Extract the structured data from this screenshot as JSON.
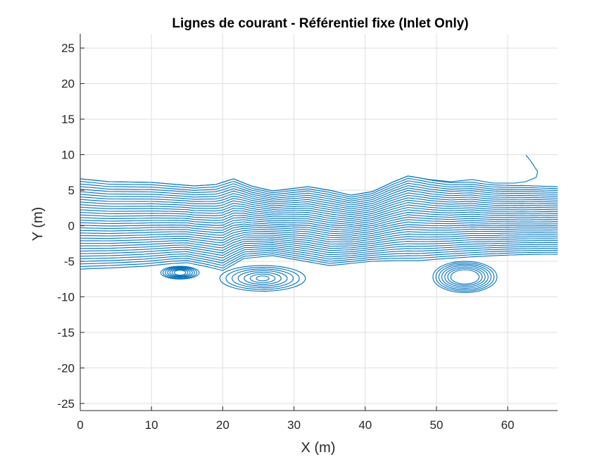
{
  "chart_data": {
    "type": "line",
    "title": "Lignes de courant - Référentiel fixe (Inlet Only)",
    "xlabel": "X (m)",
    "ylabel": "Y (m)",
    "xlim": [
      0,
      67
    ],
    "ylim": [
      -26,
      27
    ],
    "xticks": [
      0,
      10,
      20,
      30,
      40,
      50,
      60
    ],
    "yticks": [
      -25,
      -20,
      -15,
      -10,
      -5,
      0,
      5,
      10,
      15,
      20,
      25
    ],
    "grid": true,
    "line_color": "#0072BD",
    "streamlines": {
      "count": 36,
      "inlet_y_range": [
        -6.1,
        6.6
      ],
      "upper_envelope": [
        [
          0,
          6.6
        ],
        [
          4,
          6.2
        ],
        [
          10,
          6.1
        ],
        [
          16,
          5.6
        ],
        [
          19,
          5.8
        ],
        [
          21.5,
          6.6
        ],
        [
          24,
          5.6
        ],
        [
          27,
          4.9
        ],
        [
          32,
          5.5
        ],
        [
          35,
          5.0
        ],
        [
          38,
          4.3
        ],
        [
          41,
          4.8
        ],
        [
          44,
          6.2
        ],
        [
          46,
          7.0
        ],
        [
          49,
          6.5
        ],
        [
          52,
          6.2
        ],
        [
          55,
          6.5
        ],
        [
          58,
          6.0
        ],
        [
          61,
          6.0
        ],
        [
          62.5,
          6.2
        ],
        [
          64,
          6.8
        ],
        [
          64.2,
          7.6
        ],
        [
          63.3,
          9.0
        ],
        [
          62.6,
          9.9
        ]
      ],
      "lower_envelope": [
        [
          0,
          -6.1
        ],
        [
          5,
          -5.9
        ],
        [
          9,
          -5.7
        ],
        [
          13,
          -5.3
        ],
        [
          15,
          -5.2
        ],
        [
          18,
          -5.8
        ],
        [
          20,
          -6.3
        ],
        [
          23,
          -4.6
        ],
        [
          27,
          -4.2
        ],
        [
          31,
          -4.9
        ],
        [
          35,
          -5.6
        ],
        [
          38,
          -5.3
        ],
        [
          41,
          -5.0
        ],
        [
          44,
          -4.9
        ],
        [
          47,
          -4.9
        ],
        [
          50,
          -4.8
        ],
        [
          55,
          -4.6
        ],
        [
          67,
          -4.0
        ]
      ],
      "exit_y_range": [
        -4.0,
        5.5
      ],
      "eddies": [
        {
          "center": [
            14,
            -6.6
          ],
          "rx": [
            0.8,
            2.7
          ],
          "ry": [
            0.35,
            0.9
          ]
        },
        {
          "center": [
            25.6,
            -7.4
          ],
          "rx": [
            0.9,
            6.0
          ],
          "ry": [
            0.35,
            1.8
          ]
        },
        {
          "center": [
            54,
            -7.2
          ],
          "rx": [
            2.0,
            4.5
          ],
          "ry": [
            1.0,
            2.2
          ]
        }
      ]
    }
  }
}
